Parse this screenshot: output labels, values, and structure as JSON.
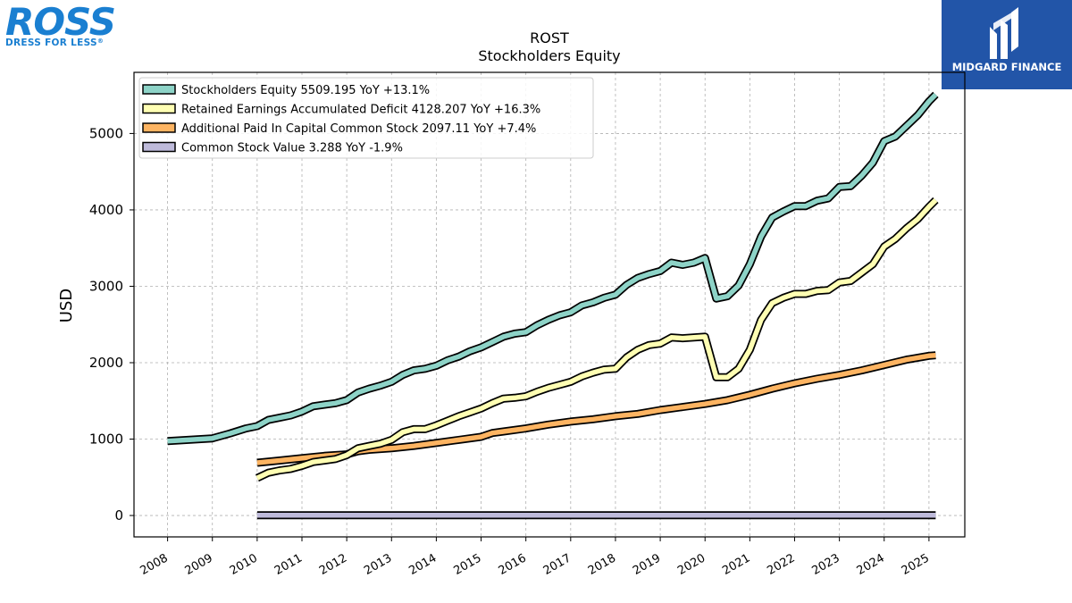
{
  "logos": {
    "left_word": "ROSS",
    "left_tagline": "DRESS FOR LESS",
    "left_reg": "®",
    "right_text": "MIDGARD FINANCE"
  },
  "chart_data": {
    "type": "line",
    "title": "ROST",
    "subtitle": "Stockholders  Equity",
    "xlabel": "",
    "ylabel": "USD",
    "xlim": [
      2007.25,
      2025.8
    ],
    "ylim": [
      -280,
      5800
    ],
    "x_ticks": [
      2008,
      2009,
      2010,
      2011,
      2012,
      2013,
      2014,
      2015,
      2016,
      2017,
      2018,
      2019,
      2020,
      2021,
      2022,
      2023,
      2024,
      2025
    ],
    "y_ticks": [
      0,
      1000,
      2000,
      3000,
      4000,
      5000
    ],
    "grid": true,
    "legend_position": "top-left",
    "series": [
      {
        "name": "Stockholders Equity",
        "legend_label": "Stockholders Equity  5509.195 YoY +13.1%",
        "color": "#8dd3c7",
        "x": [
          2008.0,
          2009.0,
          2009.4,
          2009.75,
          2010.0,
          2010.25,
          2010.5,
          2010.75,
          2011.0,
          2011.25,
          2011.5,
          2011.75,
          2012.0,
          2012.25,
          2012.5,
          2012.75,
          2013.0,
          2013.25,
          2013.5,
          2013.75,
          2014.0,
          2014.25,
          2014.5,
          2014.75,
          2015.0,
          2015.25,
          2015.5,
          2015.75,
          2016.0,
          2016.25,
          2016.5,
          2016.75,
          2017.0,
          2017.25,
          2017.5,
          2017.75,
          2018.0,
          2018.25,
          2018.5,
          2018.75,
          2019.0,
          2019.25,
          2019.5,
          2019.75,
          2020.0,
          2020.25,
          2020.5,
          2020.75,
          2021.0,
          2021.25,
          2021.5,
          2021.75,
          2022.0,
          2022.25,
          2022.5,
          2022.75,
          2023.0,
          2023.25,
          2023.5,
          2023.75,
          2024.0,
          2024.25,
          2024.5,
          2024.75,
          2025.0,
          2025.15
        ],
        "values": [
          975,
          1010,
          1075,
          1140,
          1170,
          1250,
          1280,
          1310,
          1360,
          1430,
          1450,
          1470,
          1510,
          1610,
          1660,
          1700,
          1750,
          1840,
          1900,
          1920,
          1960,
          2030,
          2080,
          2150,
          2200,
          2270,
          2340,
          2380,
          2400,
          2490,
          2560,
          2620,
          2660,
          2750,
          2790,
          2850,
          2890,
          3020,
          3110,
          3160,
          3200,
          3310,
          3280,
          3310,
          3370,
          2840,
          2870,
          3010,
          3290,
          3650,
          3900,
          3980,
          4050,
          4050,
          4120,
          4150,
          4300,
          4310,
          4450,
          4620,
          4900,
          4960,
          5100,
          5240,
          5420,
          5509.195
        ]
      },
      {
        "name": "Retained Earnings Accumulated Deficit",
        "legend_label": "Retained Earnings Accumulated Deficit  4128.207 YoY +16.3%",
        "color": "#ffffb3",
        "x": [
          2010.0,
          2010.25,
          2010.5,
          2010.75,
          2011.0,
          2011.25,
          2011.5,
          2011.75,
          2012.0,
          2012.25,
          2012.5,
          2012.75,
          2013.0,
          2013.25,
          2013.5,
          2013.75,
          2014.0,
          2014.25,
          2014.5,
          2014.75,
          2015.0,
          2015.25,
          2015.5,
          2015.75,
          2016.0,
          2016.25,
          2016.5,
          2016.75,
          2017.0,
          2017.25,
          2017.5,
          2017.75,
          2018.0,
          2018.25,
          2018.5,
          2018.75,
          2019.0,
          2019.25,
          2019.5,
          2019.75,
          2020.0,
          2020.25,
          2020.5,
          2020.75,
          2021.0,
          2021.25,
          2021.5,
          2021.75,
          2022.0,
          2022.25,
          2022.5,
          2022.75,
          2023.0,
          2023.25,
          2023.5,
          2023.75,
          2024.0,
          2024.25,
          2024.5,
          2024.75,
          2025.0,
          2025.15
        ],
        "values": [
          490,
          560,
          590,
          610,
          650,
          700,
          720,
          740,
          790,
          880,
          910,
          940,
          990,
          1090,
          1130,
          1130,
          1180,
          1240,
          1300,
          1350,
          1400,
          1470,
          1530,
          1540,
          1560,
          1620,
          1670,
          1710,
          1750,
          1820,
          1870,
          1910,
          1920,
          2070,
          2170,
          2230,
          2250,
          2330,
          2320,
          2330,
          2340,
          1810,
          1810,
          1920,
          2170,
          2560,
          2780,
          2850,
          2900,
          2900,
          2940,
          2950,
          3050,
          3070,
          3180,
          3290,
          3520,
          3620,
          3760,
          3880,
          4040,
          4128.207
        ]
      },
      {
        "name": "Additional Paid In Capital Common Stock",
        "legend_label": "Additional Paid In Capital Common Stock  2097.11 YoY +7.4%",
        "color": "#fdb462",
        "x": [
          2010.0,
          2010.5,
          2011.0,
          2011.5,
          2012.0,
          2012.25,
          2012.5,
          2013.0,
          2013.5,
          2014.0,
          2014.5,
          2015.0,
          2015.25,
          2015.5,
          2016.0,
          2016.5,
          2017.0,
          2017.5,
          2018.0,
          2018.5,
          2019.0,
          2019.5,
          2020.0,
          2020.5,
          2021.0,
          2021.5,
          2022.0,
          2022.5,
          2023.0,
          2023.5,
          2024.0,
          2024.5,
          2025.0,
          2025.15
        ],
        "values": [
          690,
          720,
          750,
          780,
          800,
          840,
          860,
          880,
          910,
          950,
          990,
          1030,
          1080,
          1100,
          1140,
          1190,
          1230,
          1260,
          1300,
          1330,
          1380,
          1420,
          1460,
          1510,
          1580,
          1660,
          1730,
          1790,
          1840,
          1900,
          1970,
          2040,
          2090,
          2097.11
        ]
      },
      {
        "name": "Common Stock Value",
        "legend_label": "Common Stock Value  3.288 YoY -1.9%",
        "color": "#bebada",
        "x": [
          2010.0,
          2025.15
        ],
        "values": [
          3.5,
          3.288
        ]
      }
    ]
  }
}
